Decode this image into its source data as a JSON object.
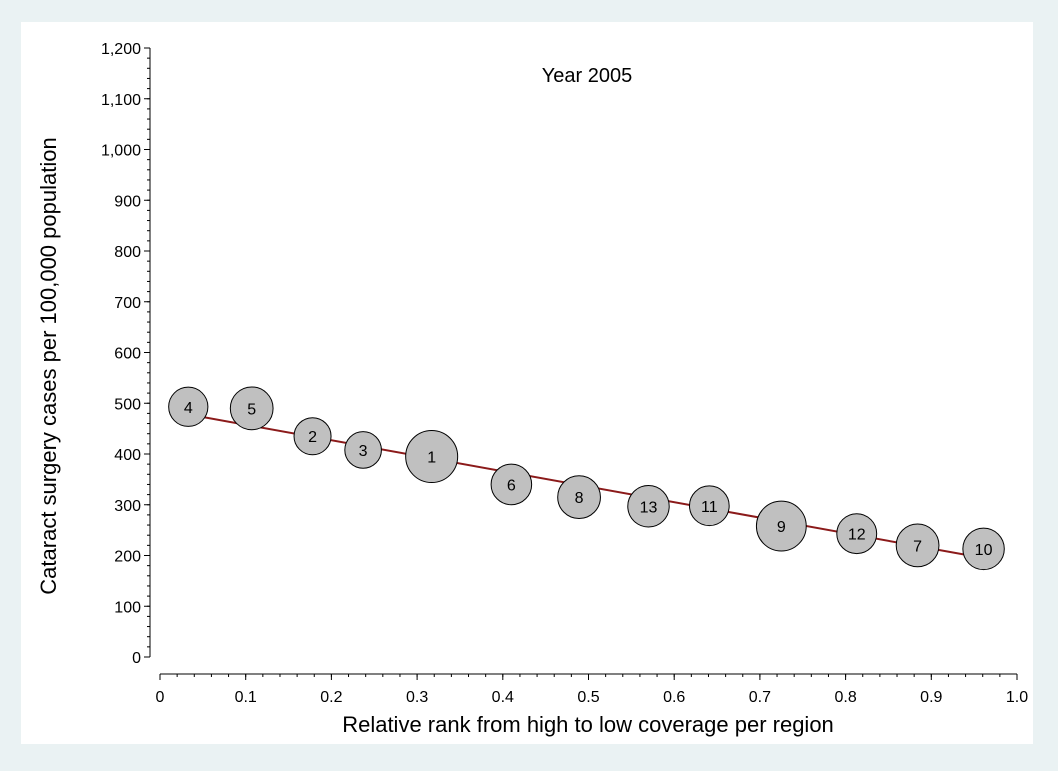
{
  "chart_data": {
    "type": "scatter",
    "title": "Year 2005",
    "xlabel": "Relative rank from high to low coverage per region",
    "ylabel": "Cataract surgery cases per 100,000 population",
    "xlim": [
      0,
      1.0
    ],
    "ylim": [
      0,
      1200
    ],
    "x_ticks": [
      0,
      0.1,
      0.2,
      0.3,
      0.4,
      0.5,
      0.6,
      0.7,
      0.8,
      0.9,
      1.0
    ],
    "x_tick_labels": [
      "0",
      "0.1",
      "0.2",
      "0.3",
      "0.4",
      "0.5",
      "0.6",
      "0.7",
      "0.8",
      "0.9",
      "1.0"
    ],
    "y_ticks": [
      0,
      100,
      200,
      300,
      400,
      500,
      600,
      700,
      800,
      900,
      1000,
      1100,
      1200
    ],
    "y_tick_labels": [
      "0",
      "100",
      "200",
      "300",
      "400",
      "500",
      "600",
      "700",
      "800",
      "900",
      "1,000",
      "1,100",
      "1,200"
    ],
    "grid": false,
    "marker_color": "#c0c0c0",
    "line_color": "#8b1a1a",
    "points": [
      {
        "label": "4",
        "x": 0.033,
        "y": 493,
        "size": 0.42
      },
      {
        "label": "5",
        "x": 0.107,
        "y": 490,
        "size": 0.58
      },
      {
        "label": "2",
        "x": 0.178,
        "y": 435,
        "size": 0.32
      },
      {
        "label": "3",
        "x": 0.237,
        "y": 408,
        "size": 0.3
      },
      {
        "label": "1",
        "x": 0.317,
        "y": 395,
        "size": 1.0
      },
      {
        "label": "6",
        "x": 0.41,
        "y": 340,
        "size": 0.48
      },
      {
        "label": "8",
        "x": 0.489,
        "y": 315,
        "size": 0.58
      },
      {
        "label": "13",
        "x": 0.57,
        "y": 297,
        "size": 0.52
      },
      {
        "label": "11",
        "x": 0.641,
        "y": 298,
        "size": 0.44
      },
      {
        "label": "9",
        "x": 0.725,
        "y": 258,
        "size": 0.9
      },
      {
        "label": "12",
        "x": 0.813,
        "y": 243,
        "size": 0.45
      },
      {
        "label": "7",
        "x": 0.884,
        "y": 220,
        "size": 0.58
      },
      {
        "label": "10",
        "x": 0.961,
        "y": 213,
        "size": 0.52
      }
    ],
    "fit_line": {
      "x": [
        0.033,
        0.961
      ],
      "y": [
        478,
        195
      ]
    }
  }
}
